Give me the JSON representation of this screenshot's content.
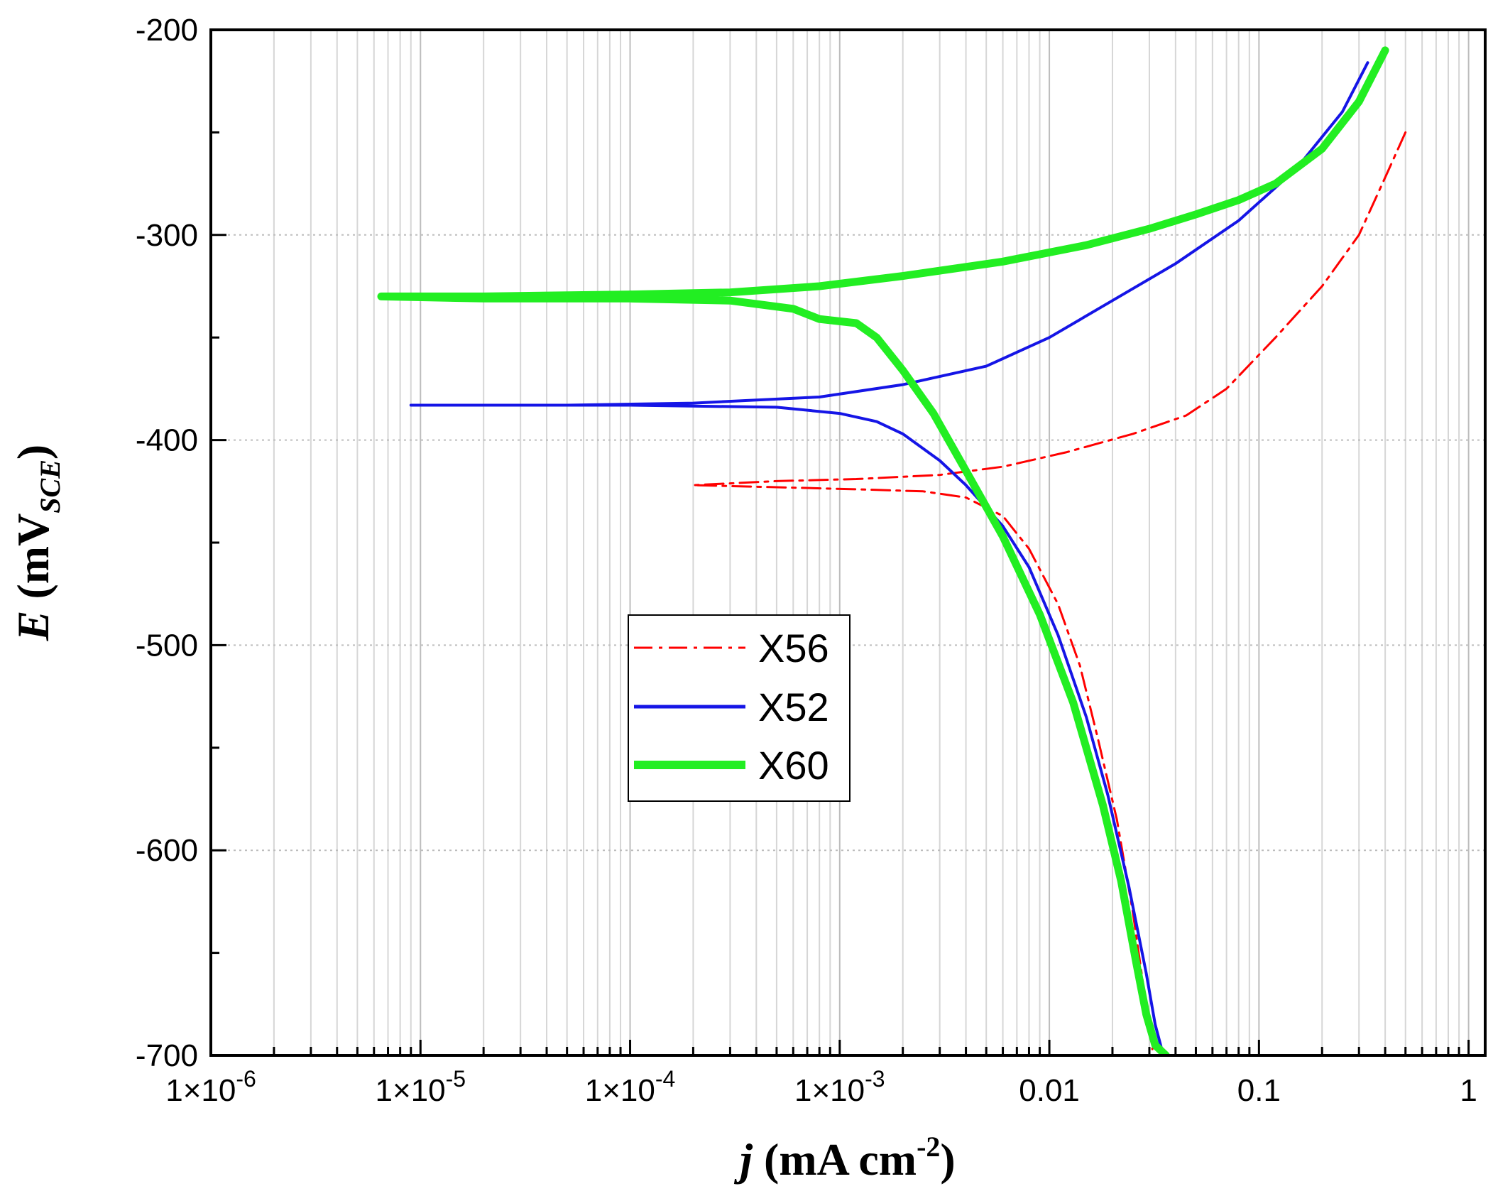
{
  "chart_data": {
    "type": "line",
    "title": "",
    "xlabel": {
      "symbol": "j",
      "unit": "(mA cm",
      "sup": "-2",
      "close": ")"
    },
    "ylabel": {
      "symbol": "E",
      "unit_open": "(mV",
      "sub": "SCE",
      "unit_close": ")"
    },
    "xscale": "log",
    "xlim": [
      1e-06,
      1.2
    ],
    "ylim": [
      -700,
      -200
    ],
    "x_ticks": [
      {
        "value": 1e-06,
        "mant": "1×10",
        "exp": "-6"
      },
      {
        "value": 1e-05,
        "mant": "1×10",
        "exp": "-5"
      },
      {
        "value": 0.0001,
        "mant": "1×10",
        "exp": "-4"
      },
      {
        "value": 0.001,
        "mant": "1×10",
        "exp": "-3"
      },
      {
        "value": 0.01,
        "mant": "0.01",
        "exp": ""
      },
      {
        "value": 0.1,
        "mant": "0.1",
        "exp": ""
      },
      {
        "value": 1,
        "mant": "1",
        "exp": ""
      }
    ],
    "y_ticks": [
      {
        "value": -200,
        "label": "-200"
      },
      {
        "value": -300,
        "label": "-300"
      },
      {
        "value": -400,
        "label": "-400"
      },
      {
        "value": -500,
        "label": "-500"
      },
      {
        "value": -600,
        "label": "-600"
      },
      {
        "value": -700,
        "label": "-700"
      }
    ],
    "grid": true,
    "legend_position": "center-left",
    "series": [
      {
        "name": "X56",
        "color": "#ff0000",
        "style": "dashdot",
        "points": [
          [
            0.5,
            -250
          ],
          [
            0.4,
            -272
          ],
          [
            0.3,
            -300
          ],
          [
            0.2,
            -325
          ],
          [
            0.12,
            -350
          ],
          [
            0.07,
            -375
          ],
          [
            0.045,
            -388
          ],
          [
            0.025,
            -397
          ],
          [
            0.012,
            -406
          ],
          [
            0.006,
            -413
          ],
          [
            0.003,
            -417
          ],
          [
            0.0012,
            -419
          ],
          [
            0.0005,
            -420
          ],
          [
            0.0002,
            -422
          ],
          [
            0.0005,
            -423
          ],
          [
            0.0012,
            -424
          ],
          [
            0.0025,
            -425
          ],
          [
            0.004,
            -428
          ],
          [
            0.006,
            -437
          ],
          [
            0.008,
            -453
          ],
          [
            0.011,
            -480
          ],
          [
            0.014,
            -510
          ],
          [
            0.017,
            -545
          ],
          [
            0.021,
            -585
          ],
          [
            0.025,
            -630
          ],
          [
            0.028,
            -665
          ],
          [
            0.03,
            -685
          ],
          [
            0.031,
            -697
          ]
        ]
      },
      {
        "name": "X52",
        "color": "#1515e6",
        "style": "solid",
        "points": [
          [
            0.33,
            -216
          ],
          [
            0.25,
            -240
          ],
          [
            0.15,
            -268
          ],
          [
            0.08,
            -293
          ],
          [
            0.04,
            -314
          ],
          [
            0.02,
            -332
          ],
          [
            0.01,
            -350
          ],
          [
            0.005,
            -364
          ],
          [
            0.002,
            -373
          ],
          [
            0.0008,
            -379
          ],
          [
            0.0002,
            -382
          ],
          [
            5e-05,
            -383
          ],
          [
            9e-06,
            -383
          ],
          [
            0.0001,
            -383
          ],
          [
            0.0005,
            -384
          ],
          [
            0.001,
            -387
          ],
          [
            0.0015,
            -391
          ],
          [
            0.002,
            -397
          ],
          [
            0.003,
            -410
          ],
          [
            0.004,
            -422
          ],
          [
            0.006,
            -442
          ],
          [
            0.008,
            -462
          ],
          [
            0.011,
            -495
          ],
          [
            0.015,
            -535
          ],
          [
            0.019,
            -573
          ],
          [
            0.024,
            -618
          ],
          [
            0.029,
            -660
          ],
          [
            0.032,
            -685
          ],
          [
            0.035,
            -700
          ]
        ]
      },
      {
        "name": "X60",
        "color": "#22ee22",
        "style": "thick",
        "points": [
          [
            0.4,
            -210
          ],
          [
            0.3,
            -235
          ],
          [
            0.2,
            -258
          ],
          [
            0.12,
            -275
          ],
          [
            0.08,
            -283
          ],
          [
            0.05,
            -290
          ],
          [
            0.03,
            -297
          ],
          [
            0.015,
            -305
          ],
          [
            0.006,
            -313
          ],
          [
            0.002,
            -320
          ],
          [
            0.0008,
            -325
          ],
          [
            0.0003,
            -328
          ],
          [
            0.0001,
            -329
          ],
          [
            2e-05,
            -330
          ],
          [
            6.5e-06,
            -330
          ],
          [
            2e-05,
            -331
          ],
          [
            0.0001,
            -331
          ],
          [
            0.0003,
            -332
          ],
          [
            0.0006,
            -336
          ],
          [
            0.0008,
            -341
          ],
          [
            0.0012,
            -343
          ],
          [
            0.0015,
            -350
          ],
          [
            0.002,
            -366
          ],
          [
            0.0028,
            -387
          ],
          [
            0.004,
            -415
          ],
          [
            0.006,
            -447
          ],
          [
            0.009,
            -485
          ],
          [
            0.013,
            -528
          ],
          [
            0.018,
            -578
          ],
          [
            0.022,
            -615
          ],
          [
            0.026,
            -655
          ],
          [
            0.029,
            -680
          ],
          [
            0.032,
            -695
          ],
          [
            0.036,
            -700
          ]
        ]
      }
    ]
  }
}
